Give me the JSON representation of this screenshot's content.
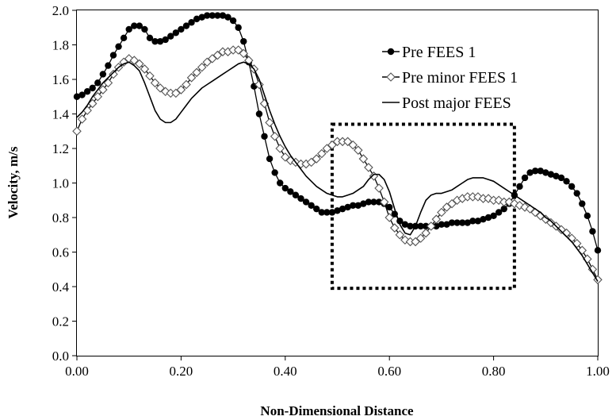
{
  "chart_data": {
    "type": "line",
    "title": "",
    "xlabel": "Non-Dimensional Distance",
    "ylabel": "Velocity, m/s",
    "xlim": [
      0,
      1
    ],
    "ylim": [
      0,
      2
    ],
    "x_ticks": [
      {
        "value": 0.0,
        "label": "0.00"
      },
      {
        "value": 0.2,
        "label": "0.20"
      },
      {
        "value": 0.4,
        "label": "0.40"
      },
      {
        "value": 0.6,
        "label": "0.60"
      },
      {
        "value": 0.8,
        "label": "0.80"
      },
      {
        "value": 1.0,
        "label": "1.00"
      }
    ],
    "y_ticks": [
      {
        "value": 0.0,
        "label": "0.0"
      },
      {
        "value": 0.2,
        "label": "0.2"
      },
      {
        "value": 0.4,
        "label": "0.4"
      },
      {
        "value": 0.6,
        "label": "0.6"
      },
      {
        "value": 0.8,
        "label": "0.8"
      },
      {
        "value": 1.0,
        "label": "1.0"
      },
      {
        "value": 1.2,
        "label": "1.2"
      },
      {
        "value": 1.4,
        "label": "1.4"
      },
      {
        "value": 1.6,
        "label": "1.6"
      },
      {
        "value": 1.8,
        "label": "1.8"
      },
      {
        "value": 2.0,
        "label": "2.0"
      }
    ],
    "grid": false,
    "legend_position": "top-right",
    "annotations": [
      {
        "type": "dotted-rectangle",
        "x_range": [
          0.49,
          0.84
        ],
        "y_range": [
          0.39,
          1.34
        ]
      }
    ],
    "series": [
      {
        "name": "Pre FEES 1",
        "marker": "filled-circle",
        "color": "#000000",
        "x": [
          0.0,
          0.01,
          0.02,
          0.03,
          0.04,
          0.05,
          0.06,
          0.07,
          0.08,
          0.09,
          0.1,
          0.11,
          0.12,
          0.13,
          0.14,
          0.15,
          0.16,
          0.17,
          0.18,
          0.19,
          0.2,
          0.21,
          0.22,
          0.23,
          0.24,
          0.25,
          0.26,
          0.27,
          0.28,
          0.29,
          0.3,
          0.31,
          0.32,
          0.33,
          0.34,
          0.35,
          0.36,
          0.37,
          0.38,
          0.39,
          0.4,
          0.41,
          0.42,
          0.43,
          0.44,
          0.45,
          0.46,
          0.47,
          0.48,
          0.49,
          0.5,
          0.51,
          0.52,
          0.53,
          0.54,
          0.55,
          0.56,
          0.57,
          0.58,
          0.59,
          0.6,
          0.61,
          0.62,
          0.63,
          0.64,
          0.65,
          0.66,
          0.67,
          0.68,
          0.69,
          0.7,
          0.71,
          0.72,
          0.73,
          0.74,
          0.75,
          0.76,
          0.77,
          0.78,
          0.79,
          0.8,
          0.81,
          0.82,
          0.83,
          0.84,
          0.85,
          0.86,
          0.87,
          0.88,
          0.89,
          0.9,
          0.91,
          0.92,
          0.93,
          0.94,
          0.95,
          0.96,
          0.97,
          0.98,
          0.99,
          1.0
        ],
        "y": [
          1.5,
          1.51,
          1.53,
          1.55,
          1.58,
          1.63,
          1.68,
          1.74,
          1.79,
          1.84,
          1.89,
          1.91,
          1.91,
          1.89,
          1.84,
          1.82,
          1.82,
          1.83,
          1.85,
          1.87,
          1.89,
          1.91,
          1.93,
          1.95,
          1.96,
          1.97,
          1.97,
          1.97,
          1.97,
          1.96,
          1.94,
          1.9,
          1.82,
          1.7,
          1.56,
          1.4,
          1.27,
          1.14,
          1.06,
          1.0,
          0.97,
          0.95,
          0.93,
          0.91,
          0.89,
          0.87,
          0.85,
          0.83,
          0.83,
          0.83,
          0.84,
          0.85,
          0.86,
          0.87,
          0.87,
          0.88,
          0.89,
          0.89,
          0.89,
          0.88,
          0.86,
          0.82,
          0.78,
          0.76,
          0.75,
          0.75,
          0.75,
          0.75,
          0.75,
          0.75,
          0.76,
          0.76,
          0.77,
          0.77,
          0.77,
          0.77,
          0.78,
          0.78,
          0.79,
          0.8,
          0.81,
          0.83,
          0.85,
          0.88,
          0.93,
          0.98,
          1.03,
          1.06,
          1.07,
          1.07,
          1.06,
          1.05,
          1.04,
          1.03,
          1.01,
          0.98,
          0.94,
          0.88,
          0.81,
          0.72,
          0.61
        ]
      },
      {
        "name": "Pre minor FEES 1",
        "marker": "open-diamond",
        "color": "#000000",
        "x": [
          0.0,
          0.01,
          0.02,
          0.03,
          0.04,
          0.05,
          0.06,
          0.07,
          0.08,
          0.09,
          0.1,
          0.11,
          0.12,
          0.13,
          0.14,
          0.15,
          0.16,
          0.17,
          0.18,
          0.19,
          0.2,
          0.21,
          0.22,
          0.23,
          0.24,
          0.25,
          0.26,
          0.27,
          0.28,
          0.29,
          0.3,
          0.31,
          0.32,
          0.33,
          0.34,
          0.35,
          0.36,
          0.37,
          0.38,
          0.39,
          0.4,
          0.41,
          0.42,
          0.43,
          0.44,
          0.45,
          0.46,
          0.47,
          0.48,
          0.49,
          0.5,
          0.51,
          0.52,
          0.53,
          0.54,
          0.55,
          0.56,
          0.57,
          0.58,
          0.59,
          0.6,
          0.61,
          0.62,
          0.63,
          0.64,
          0.65,
          0.66,
          0.67,
          0.68,
          0.69,
          0.7,
          0.71,
          0.72,
          0.73,
          0.74,
          0.75,
          0.76,
          0.77,
          0.78,
          0.79,
          0.8,
          0.81,
          0.82,
          0.83,
          0.84,
          0.85,
          0.86,
          0.87,
          0.88,
          0.89,
          0.9,
          0.91,
          0.92,
          0.93,
          0.94,
          0.95,
          0.96,
          0.97,
          0.98,
          0.99,
          1.0
        ],
        "y": [
          1.3,
          1.37,
          1.42,
          1.46,
          1.5,
          1.54,
          1.58,
          1.63,
          1.67,
          1.7,
          1.72,
          1.71,
          1.69,
          1.66,
          1.62,
          1.58,
          1.55,
          1.53,
          1.52,
          1.52,
          1.54,
          1.57,
          1.61,
          1.64,
          1.67,
          1.7,
          1.72,
          1.74,
          1.76,
          1.76,
          1.77,
          1.77,
          1.75,
          1.71,
          1.66,
          1.57,
          1.46,
          1.35,
          1.27,
          1.2,
          1.15,
          1.13,
          1.12,
          1.11,
          1.11,
          1.12,
          1.14,
          1.17,
          1.2,
          1.22,
          1.24,
          1.24,
          1.24,
          1.22,
          1.19,
          1.14,
          1.09,
          1.04,
          0.97,
          0.89,
          0.8,
          0.74,
          0.7,
          0.67,
          0.66,
          0.66,
          0.68,
          0.71,
          0.75,
          0.79,
          0.83,
          0.86,
          0.88,
          0.9,
          0.91,
          0.92,
          0.92,
          0.92,
          0.91,
          0.91,
          0.9,
          0.9,
          0.89,
          0.89,
          0.88,
          0.87,
          0.86,
          0.85,
          0.83,
          0.81,
          0.79,
          0.77,
          0.75,
          0.73,
          0.71,
          0.68,
          0.65,
          0.61,
          0.56,
          0.5,
          0.44
        ]
      },
      {
        "name": "Post major FEES",
        "marker": "none",
        "color": "#000000",
        "x": [
          0.0,
          0.01,
          0.02,
          0.03,
          0.04,
          0.05,
          0.06,
          0.07,
          0.08,
          0.09,
          0.1,
          0.11,
          0.12,
          0.13,
          0.14,
          0.15,
          0.16,
          0.17,
          0.18,
          0.19,
          0.2,
          0.21,
          0.22,
          0.23,
          0.24,
          0.25,
          0.26,
          0.27,
          0.28,
          0.29,
          0.3,
          0.31,
          0.32,
          0.33,
          0.34,
          0.35,
          0.36,
          0.37,
          0.38,
          0.39,
          0.4,
          0.41,
          0.42,
          0.43,
          0.44,
          0.45,
          0.46,
          0.47,
          0.48,
          0.49,
          0.5,
          0.51,
          0.52,
          0.53,
          0.54,
          0.55,
          0.56,
          0.57,
          0.58,
          0.59,
          0.6,
          0.61,
          0.62,
          0.63,
          0.64,
          0.65,
          0.66,
          0.67,
          0.68,
          0.69,
          0.7,
          0.71,
          0.72,
          0.73,
          0.74,
          0.75,
          0.76,
          0.77,
          0.78,
          0.79,
          0.8,
          0.81,
          0.82,
          0.83,
          0.84,
          0.85,
          0.86,
          0.87,
          0.88,
          0.89,
          0.9,
          0.91,
          0.92,
          0.93,
          0.94,
          0.95,
          0.96,
          0.97,
          0.98,
          0.99,
          1.0
        ],
        "y": [
          1.38,
          1.41,
          1.45,
          1.5,
          1.54,
          1.58,
          1.61,
          1.64,
          1.67,
          1.69,
          1.7,
          1.68,
          1.65,
          1.58,
          1.5,
          1.42,
          1.37,
          1.35,
          1.35,
          1.37,
          1.41,
          1.45,
          1.49,
          1.52,
          1.55,
          1.57,
          1.59,
          1.61,
          1.63,
          1.65,
          1.67,
          1.69,
          1.7,
          1.69,
          1.66,
          1.6,
          1.51,
          1.42,
          1.34,
          1.27,
          1.21,
          1.16,
          1.12,
          1.08,
          1.04,
          1.01,
          0.98,
          0.96,
          0.94,
          0.93,
          0.92,
          0.92,
          0.93,
          0.94,
          0.96,
          0.98,
          1.02,
          1.05,
          1.05,
          1.02,
          0.95,
          0.85,
          0.76,
          0.71,
          0.7,
          0.75,
          0.83,
          0.9,
          0.93,
          0.94,
          0.94,
          0.95,
          0.96,
          0.98,
          1.0,
          1.02,
          1.03,
          1.03,
          1.03,
          1.02,
          1.01,
          0.99,
          0.97,
          0.95,
          0.93,
          0.91,
          0.89,
          0.87,
          0.85,
          0.83,
          0.8,
          0.78,
          0.75,
          0.72,
          0.69,
          0.66,
          0.62,
          0.58,
          0.53,
          0.48,
          0.43
        ]
      }
    ]
  }
}
